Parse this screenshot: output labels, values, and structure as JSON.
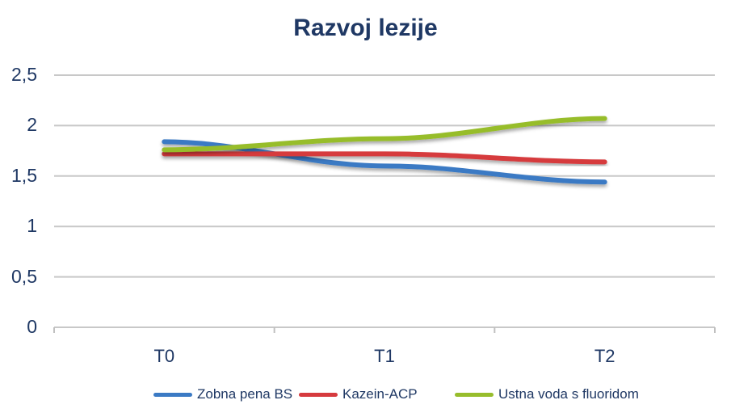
{
  "chart_data": {
    "type": "line",
    "title": "Razvoj lezije",
    "xlabel": "",
    "ylabel": "",
    "categories": [
      "T0",
      "T1",
      "T2"
    ],
    "series": [
      {
        "name": "Zobna pena BS",
        "color": "#3b7ac4",
        "values": [
          1.84,
          1.6,
          1.44
        ]
      },
      {
        "name": "Kazein-ACP",
        "color": "#d63a3e",
        "values": [
          1.72,
          1.72,
          1.64
        ]
      },
      {
        "name": "Ustna voda s fluoridom",
        "color": "#97bd2c",
        "values": [
          1.76,
          1.87,
          2.07
        ]
      }
    ],
    "ylim": [
      0,
      2.5
    ],
    "yticks": [
      "0",
      "0,5",
      "1",
      "1,5",
      "2",
      "2,5"
    ],
    "grid": true,
    "legend_position": "bottom"
  },
  "legend": {
    "items": [
      {
        "label": "Zobna pena BS"
      },
      {
        "label": "Kazein-ACP"
      },
      {
        "label": "Ustna voda s fluoridom"
      }
    ]
  }
}
